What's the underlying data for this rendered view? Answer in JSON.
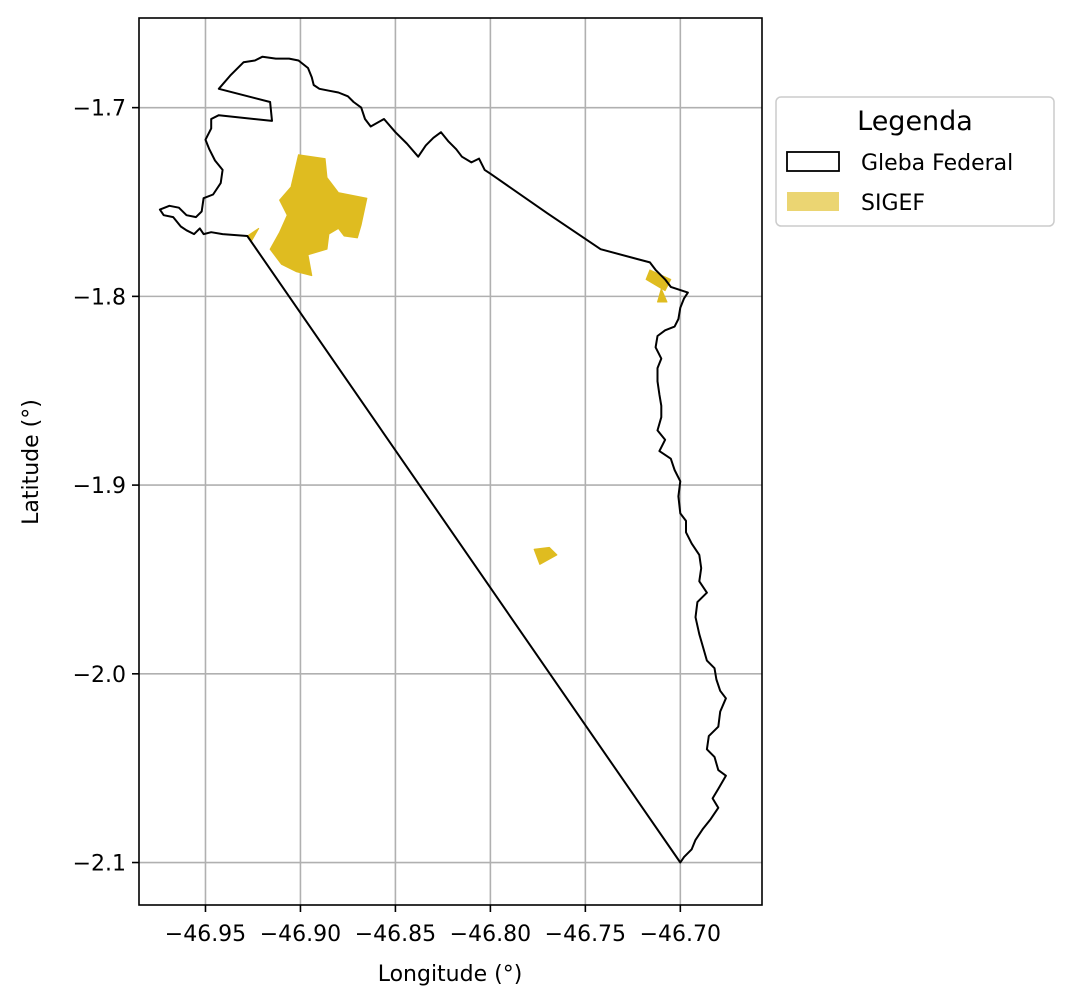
{
  "chart_data": {
    "type": "map",
    "xlabel": "Longitude (°)",
    "ylabel": "Latitude (°)",
    "xlim": [
      -46.985,
      -46.657
    ],
    "ylim": [
      -2.1225,
      -1.6525
    ],
    "xticks": [
      -46.95,
      -46.9,
      -46.85,
      -46.8,
      -46.75,
      -46.7
    ],
    "xtick_labels": [
      "−46.95",
      "−46.90",
      "−46.85",
      "−46.80",
      "−46.75",
      "−46.70"
    ],
    "yticks": [
      -1.7,
      -1.8,
      -1.9,
      -2.0,
      -2.1
    ],
    "ytick_labels": [
      "−1.7",
      "−1.8",
      "−1.9",
      "−2.0",
      "−2.1"
    ],
    "grid": true,
    "legend": {
      "title": "Legenda",
      "placement": "outside-right-top",
      "entries": [
        {
          "label": "Gleba Federal",
          "style": "outline",
          "color": "#000000"
        },
        {
          "label": "SIGEF",
          "style": "fill",
          "color": "#ebd572"
        }
      ]
    },
    "series": [
      {
        "name": "Gleba Federal",
        "kind": "outline",
        "color": "#000000",
        "points": [
          [
            -46.928,
            -1.768
          ],
          [
            -46.941,
            -1.767
          ],
          [
            -46.947,
            -1.766
          ],
          [
            -46.951,
            -1.767
          ],
          [
            -46.953,
            -1.764
          ],
          [
            -46.956,
            -1.767
          ],
          [
            -46.96,
            -1.765
          ],
          [
            -46.963,
            -1.763
          ],
          [
            -46.967,
            -1.758
          ],
          [
            -46.972,
            -1.757
          ],
          [
            -46.974,
            -1.754
          ],
          [
            -46.969,
            -1.752
          ],
          [
            -46.964,
            -1.753
          ],
          [
            -46.96,
            -1.757
          ],
          [
            -46.955,
            -1.758
          ],
          [
            -46.952,
            -1.755
          ],
          [
            -46.951,
            -1.748
          ],
          [
            -46.946,
            -1.746
          ],
          [
            -46.942,
            -1.74
          ],
          [
            -46.941,
            -1.733
          ],
          [
            -46.945,
            -1.728
          ],
          [
            -46.948,
            -1.722
          ],
          [
            -46.95,
            -1.717
          ],
          [
            -46.947,
            -1.711
          ],
          [
            -46.947,
            -1.706
          ],
          [
            -46.943,
            -1.704
          ],
          [
            -46.915,
            -1.707
          ],
          [
            -46.916,
            -1.697
          ],
          [
            -46.943,
            -1.69
          ],
          [
            -46.937,
            -1.683
          ],
          [
            -46.93,
            -1.676
          ],
          [
            -46.924,
            -1.675
          ],
          [
            -46.92,
            -1.673
          ],
          [
            -46.913,
            -1.674
          ],
          [
            -46.906,
            -1.674
          ],
          [
            -46.901,
            -1.675
          ],
          [
            -46.896,
            -1.679
          ],
          [
            -46.894,
            -1.684
          ],
          [
            -46.893,
            -1.688
          ],
          [
            -46.89,
            -1.69
          ],
          [
            -46.885,
            -1.691
          ],
          [
            -46.88,
            -1.692
          ],
          [
            -46.875,
            -1.694
          ],
          [
            -46.872,
            -1.697
          ],
          [
            -46.868,
            -1.7
          ],
          [
            -46.866,
            -1.706
          ],
          [
            -46.863,
            -1.71
          ],
          [
            -46.856,
            -1.706
          ],
          [
            -46.85,
            -1.713
          ],
          [
            -46.844,
            -1.719
          ],
          [
            -46.838,
            -1.726
          ],
          [
            -46.834,
            -1.72
          ],
          [
            -46.83,
            -1.716
          ],
          [
            -46.826,
            -1.713
          ],
          [
            -46.822,
            -1.718
          ],
          [
            -46.818,
            -1.722
          ],
          [
            -46.815,
            -1.726
          ],
          [
            -46.81,
            -1.729
          ],
          [
            -46.806,
            -1.727
          ],
          [
            -46.803,
            -1.733
          ],
          [
            -46.8,
            -1.735
          ],
          [
            -46.77,
            -1.756
          ],
          [
            -46.742,
            -1.775
          ],
          [
            -46.716,
            -1.782
          ],
          [
            -46.713,
            -1.786
          ],
          [
            -46.708,
            -1.791
          ],
          [
            -46.705,
            -1.795
          ],
          [
            -46.699,
            -1.797
          ],
          [
            -46.696,
            -1.798
          ],
          [
            -46.698,
            -1.801
          ],
          [
            -46.7,
            -1.806
          ],
          [
            -46.701,
            -1.812
          ],
          [
            -46.703,
            -1.816
          ],
          [
            -46.708,
            -1.818
          ],
          [
            -46.712,
            -1.821
          ],
          [
            -46.713,
            -1.827
          ],
          [
            -46.71,
            -1.833
          ],
          [
            -46.712,
            -1.838
          ],
          [
            -46.712,
            -1.845
          ],
          [
            -46.711,
            -1.852
          ],
          [
            -46.71,
            -1.858
          ],
          [
            -46.71,
            -1.864
          ],
          [
            -46.712,
            -1.871
          ],
          [
            -46.708,
            -1.876
          ],
          [
            -46.711,
            -1.882
          ],
          [
            -46.705,
            -1.886
          ],
          [
            -46.703,
            -1.892
          ],
          [
            -46.7,
            -1.898
          ],
          [
            -46.701,
            -1.906
          ],
          [
            -46.7,
            -1.915
          ],
          [
            -46.697,
            -1.919
          ],
          [
            -46.697,
            -1.925
          ],
          [
            -46.694,
            -1.931
          ],
          [
            -46.69,
            -1.937
          ],
          [
            -46.689,
            -1.944
          ],
          [
            -46.69,
            -1.951
          ],
          [
            -46.686,
            -1.957
          ],
          [
            -46.691,
            -1.962
          ],
          [
            -46.692,
            -1.97
          ],
          [
            -46.69,
            -1.979
          ],
          [
            -46.688,
            -1.986
          ],
          [
            -46.686,
            -1.993
          ],
          [
            -46.682,
            -1.997
          ],
          [
            -46.681,
            -2.003
          ],
          [
            -46.679,
            -2.009
          ],
          [
            -46.676,
            -2.013
          ],
          [
            -46.679,
            -2.02
          ],
          [
            -46.68,
            -2.028
          ],
          [
            -46.685,
            -2.033
          ],
          [
            -46.686,
            -2.04
          ],
          [
            -46.682,
            -2.044
          ],
          [
            -46.68,
            -2.051
          ],
          [
            -46.676,
            -2.054
          ],
          [
            -46.68,
            -2.061
          ],
          [
            -46.683,
            -2.066
          ],
          [
            -46.68,
            -2.071
          ],
          [
            -46.684,
            -2.077
          ],
          [
            -46.688,
            -2.082
          ],
          [
            -46.692,
            -2.088
          ],
          [
            -46.694,
            -2.093
          ],
          [
            -46.698,
            -2.097
          ],
          [
            -46.7,
            -2.1
          ],
          [
            -46.928,
            -1.768
          ]
        ]
      },
      {
        "name": "SIGEF",
        "kind": "filled-polygons",
        "color": "#dfbc20",
        "polygons": [
          [
            [
              -46.901,
              -1.725
            ],
            [
              -46.887,
              -1.727
            ],
            [
              -46.886,
              -1.737
            ],
            [
              -46.88,
              -1.745
            ],
            [
              -46.865,
              -1.748
            ],
            [
              -46.868,
              -1.762
            ],
            [
              -46.87,
              -1.769
            ],
            [
              -46.877,
              -1.768
            ],
            [
              -46.88,
              -1.764
            ],
            [
              -46.885,
              -1.767
            ],
            [
              -46.886,
              -1.775
            ],
            [
              -46.896,
              -1.778
            ],
            [
              -46.894,
              -1.789
            ],
            [
              -46.902,
              -1.787
            ],
            [
              -46.91,
              -1.783
            ],
            [
              -46.916,
              -1.775
            ],
            [
              -46.911,
              -1.766
            ],
            [
              -46.907,
              -1.757
            ],
            [
              -46.911,
              -1.749
            ],
            [
              -46.905,
              -1.742
            ]
          ],
          [
            [
              -46.928,
              -1.768
            ],
            [
              -46.922,
              -1.764
            ],
            [
              -46.926,
              -1.771
            ]
          ],
          [
            [
              -46.716,
              -1.786
            ],
            [
              -46.705,
              -1.791
            ],
            [
              -46.708,
              -1.797
            ],
            [
              -46.718,
              -1.791
            ]
          ],
          [
            [
              -46.71,
              -1.796
            ],
            [
              -46.707,
              -1.803
            ],
            [
              -46.712,
              -1.803
            ]
          ],
          [
            [
              -46.777,
              -1.934
            ],
            [
              -46.769,
              -1.933
            ],
            [
              -46.765,
              -1.937
            ],
            [
              -46.774,
              -1.942
            ]
          ]
        ]
      }
    ]
  }
}
